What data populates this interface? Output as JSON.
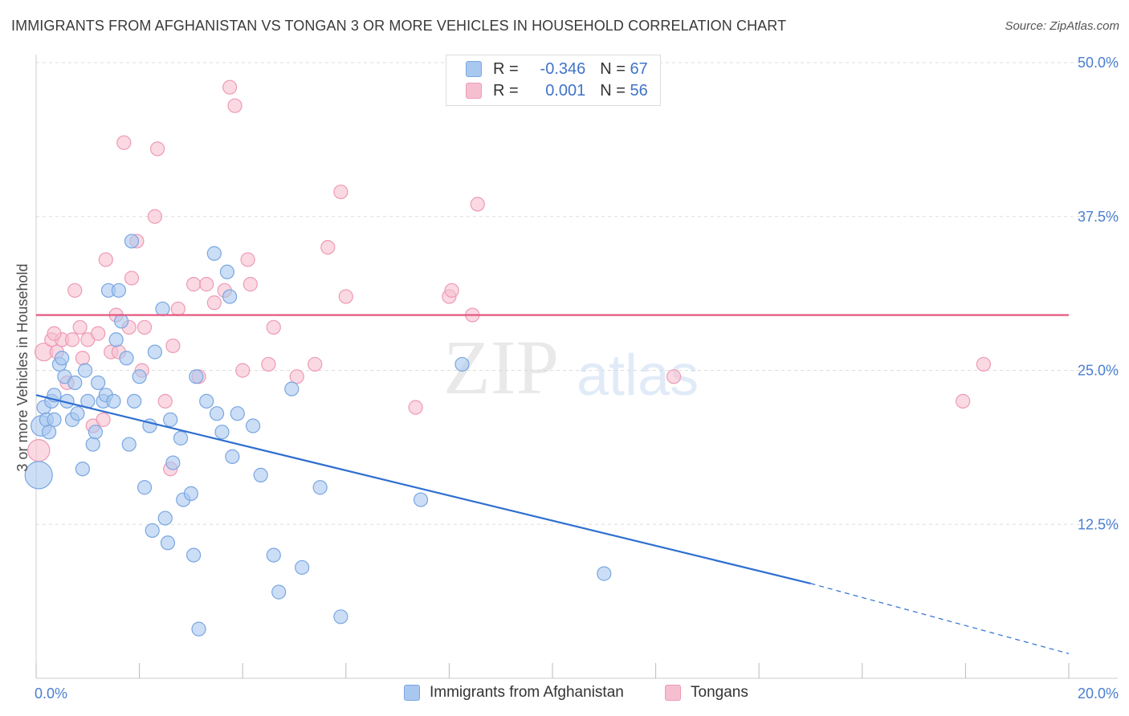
{
  "title": "IMMIGRANTS FROM AFGHANISTAN VS TONGAN 3 OR MORE VEHICLES IN HOUSEHOLD CORRELATION CHART",
  "source": "Source: ZipAtlas.com",
  "legend": {
    "rows": [
      {
        "r_label": "R =",
        "r_value": "-0.346",
        "n_label": "N =",
        "n_value": "67"
      },
      {
        "r_label": "R =",
        "r_value": "0.001",
        "n_label": "N =",
        "n_value": "56"
      }
    ]
  },
  "bottom_legend": [
    "Immigrants from Afghanistan",
    "Tongans"
  ],
  "watermark": {
    "zip": "ZIP",
    "atlas": "atlas"
  },
  "colors": {
    "blue_fill": "#a9c8f0",
    "blue_stroke": "#7aa6e0",
    "blue_line": "#2f6fd0",
    "pink_fill": "#f6bfd0",
    "pink_stroke": "#ee9ab5",
    "pink_line": "#e4577f",
    "tick_text": "#4a7fd0",
    "grid": "#dddddd"
  },
  "chart_data": {
    "type": "scatter",
    "title": "IMMIGRANTS FROM AFGHANISTAN VS TONGAN 3 OR MORE VEHICLES IN HOUSEHOLD CORRELATION CHART",
    "xlabel": "",
    "ylabel": "3 or more Vehicles in Household",
    "xlim": [
      0,
      20
    ],
    "ylim": [
      0,
      50
    ],
    "x_tick_labels": [
      "0.0%",
      "20.0%"
    ],
    "y_ticks": [
      12.5,
      25.0,
      37.5,
      50.0
    ],
    "y_tick_labels": [
      "12.5%",
      "25.0%",
      "37.5%",
      "50.0%"
    ],
    "series": [
      {
        "name": "Immigrants from Afghanistan",
        "color": "#7aa6e0",
        "R": -0.346,
        "N": 67,
        "trend": {
          "x0": 0,
          "y0": 23.0,
          "x1": 15.0,
          "y1": 7.7,
          "dash_to_x": 20,
          "dash_to_y": 2.0
        },
        "points": [
          [
            0.05,
            16.5,
            2
          ],
          [
            0.1,
            20.5,
            1.5
          ],
          [
            0.15,
            22.0,
            1
          ],
          [
            0.2,
            21.0,
            1
          ],
          [
            0.25,
            20.0,
            1
          ],
          [
            0.3,
            22.5,
            1
          ],
          [
            0.35,
            21.0,
            1
          ],
          [
            0.45,
            25.5,
            1
          ],
          [
            0.5,
            26.0,
            1
          ],
          [
            0.55,
            24.5,
            1
          ],
          [
            0.6,
            22.5,
            1
          ],
          [
            0.7,
            21.0,
            1
          ],
          [
            0.75,
            24.0,
            1
          ],
          [
            0.8,
            21.5,
            1
          ],
          [
            0.9,
            17.0,
            1
          ],
          [
            0.95,
            25.0,
            1
          ],
          [
            1.0,
            22.5,
            1
          ],
          [
            1.1,
            19.0,
            1
          ],
          [
            1.15,
            20.0,
            1
          ],
          [
            1.2,
            24.0,
            1
          ],
          [
            1.3,
            22.5,
            1
          ],
          [
            1.35,
            23.0,
            1
          ],
          [
            1.4,
            31.5,
            1
          ],
          [
            1.5,
            22.5,
            1
          ],
          [
            1.55,
            27.5,
            1
          ],
          [
            1.6,
            31.5,
            1
          ],
          [
            1.65,
            29.0,
            1
          ],
          [
            1.75,
            26.0,
            1
          ],
          [
            1.8,
            19.0,
            1
          ],
          [
            1.85,
            35.5,
            1
          ],
          [
            1.9,
            22.5,
            1
          ],
          [
            2.0,
            24.5,
            1
          ],
          [
            2.1,
            15.5,
            1
          ],
          [
            2.2,
            20.5,
            1
          ],
          [
            2.25,
            12.0,
            1
          ],
          [
            2.3,
            26.5,
            1
          ],
          [
            2.45,
            30.0,
            1
          ],
          [
            2.5,
            13.0,
            1
          ],
          [
            2.55,
            11.0,
            1
          ],
          [
            2.6,
            21.0,
            1
          ],
          [
            2.65,
            17.5,
            1
          ],
          [
            2.8,
            19.5,
            1
          ],
          [
            2.85,
            14.5,
            1
          ],
          [
            3.0,
            15.0,
            1
          ],
          [
            3.05,
            10.0,
            1
          ],
          [
            3.1,
            24.5,
            1
          ],
          [
            3.15,
            4.0,
            1
          ],
          [
            3.3,
            22.5,
            1
          ],
          [
            3.45,
            34.5,
            1
          ],
          [
            3.5,
            21.5,
            1
          ],
          [
            3.6,
            20.0,
            1
          ],
          [
            3.7,
            33.0,
            1
          ],
          [
            3.75,
            31.0,
            1
          ],
          [
            3.8,
            18.0,
            1
          ],
          [
            3.9,
            21.5,
            1
          ],
          [
            4.2,
            20.5,
            1
          ],
          [
            4.35,
            16.5,
            1
          ],
          [
            4.6,
            10.0,
            1
          ],
          [
            4.7,
            7.0,
            1
          ],
          [
            4.95,
            23.5,
            1
          ],
          [
            5.15,
            9.0,
            1
          ],
          [
            5.5,
            15.5,
            1
          ],
          [
            5.9,
            5.0,
            1
          ],
          [
            7.45,
            14.5,
            1
          ],
          [
            8.25,
            25.5,
            1
          ],
          [
            11.0,
            8.5,
            1
          ],
          [
            0.35,
            23.0,
            1
          ]
        ]
      },
      {
        "name": "Tongans",
        "color": "#ee9ab5",
        "R": 0.001,
        "N": 56,
        "trend": {
          "x0": 0,
          "y0": 29.5,
          "x1": 20,
          "y1": 29.5
        },
        "points": [
          [
            0.05,
            18.5,
            1.6
          ],
          [
            0.15,
            26.5,
            1.3
          ],
          [
            0.3,
            27.5,
            1
          ],
          [
            0.4,
            26.5,
            1
          ],
          [
            0.5,
            27.5,
            1
          ],
          [
            0.6,
            24.0,
            1
          ],
          [
            0.7,
            27.5,
            1
          ],
          [
            0.75,
            31.5,
            1
          ],
          [
            0.85,
            28.5,
            1
          ],
          [
            0.9,
            26.0,
            1
          ],
          [
            1.0,
            27.5,
            1
          ],
          [
            1.1,
            20.5,
            1
          ],
          [
            1.2,
            28.0,
            1
          ],
          [
            1.3,
            21.0,
            1
          ],
          [
            1.35,
            34.0,
            1
          ],
          [
            1.45,
            26.5,
            1
          ],
          [
            1.55,
            29.5,
            1
          ],
          [
            1.6,
            26.5,
            1
          ],
          [
            1.7,
            43.5,
            1
          ],
          [
            1.8,
            28.5,
            1
          ],
          [
            1.85,
            32.5,
            1
          ],
          [
            1.95,
            35.5,
            1
          ],
          [
            2.05,
            25.0,
            1
          ],
          [
            2.1,
            28.5,
            1
          ],
          [
            2.3,
            37.5,
            1
          ],
          [
            2.35,
            43.0,
            1
          ],
          [
            2.5,
            22.5,
            1
          ],
          [
            2.6,
            17.0,
            1
          ],
          [
            2.65,
            27.0,
            1
          ],
          [
            2.75,
            30.0,
            1
          ],
          [
            3.05,
            32.0,
            1
          ],
          [
            3.15,
            24.5,
            1
          ],
          [
            3.3,
            32.0,
            1
          ],
          [
            3.45,
            30.5,
            1
          ],
          [
            3.65,
            31.5,
            1
          ],
          [
            3.75,
            48.0,
            1
          ],
          [
            3.85,
            46.5,
            1
          ],
          [
            4.0,
            25.0,
            1
          ],
          [
            4.1,
            34.0,
            1
          ],
          [
            4.15,
            32.0,
            1
          ],
          [
            4.5,
            25.5,
            1
          ],
          [
            4.6,
            28.5,
            1
          ],
          [
            5.05,
            24.5,
            1
          ],
          [
            5.4,
            25.5,
            1
          ],
          [
            5.65,
            35.0,
            1
          ],
          [
            5.9,
            39.5,
            1
          ],
          [
            6.0,
            31.0,
            1
          ],
          [
            7.35,
            22.0,
            1
          ],
          [
            8.0,
            31.0,
            1
          ],
          [
            8.05,
            31.5,
            1
          ],
          [
            8.45,
            29.5,
            1
          ],
          [
            8.55,
            38.5,
            1
          ],
          [
            12.35,
            24.5,
            1
          ],
          [
            17.95,
            22.5,
            1
          ],
          [
            18.35,
            25.5,
            1
          ],
          [
            0.35,
            28.0,
            1
          ]
        ]
      }
    ]
  }
}
